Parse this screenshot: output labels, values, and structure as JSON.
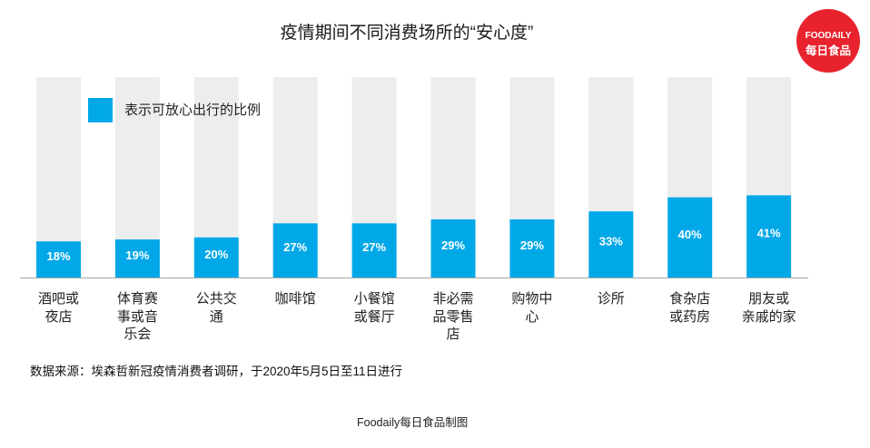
{
  "brand": {
    "logo_text_en": "FOODAILY",
    "logo_text_cn": "每日食品",
    "color": "#e8232e"
  },
  "chart_data": {
    "type": "bar",
    "title": "疫情期间不同消费场所的“安心度”",
    "categories": [
      "酒吧或\n夜店",
      "体育赛\n事或音\n乐会",
      "公共交\n通",
      "咖啡馆",
      "小餐馆\n或餐厅",
      "非必需\n品零售\n店",
      "购物中\n心",
      "诊所",
      "食杂店\n或药房",
      "朋友或\n亲戚的家"
    ],
    "series": [
      {
        "name": "表示可放心出行的比例",
        "values": [
          18,
          19,
          20,
          27,
          27,
          29,
          29,
          33,
          40,
          41
        ],
        "color": "#00a8e8"
      }
    ],
    "data_labels": [
      "18%",
      "19%",
      "20%",
      "27%",
      "27%",
      "29%",
      "29%",
      "33%",
      "40%",
      "41%"
    ],
    "ylim": [
      0,
      100
    ],
    "track_color": "#ededed",
    "axis_color": "#a6a6a6",
    "grid": false,
    "legend": {
      "position": "top-left"
    }
  },
  "source_note": "数据来源：埃森哲新冠疫情消费者调研，于2020年5月5日至11日进行",
  "footer_credit": "Foodaily每日食品制图"
}
